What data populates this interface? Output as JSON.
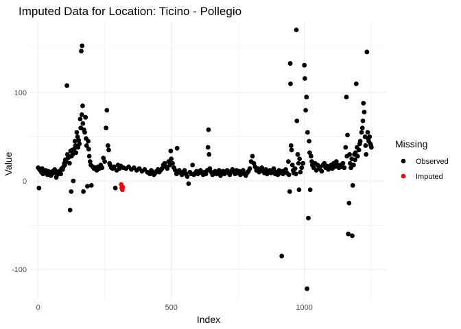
{
  "chart_data": {
    "type": "scatter",
    "title": "Imputed Data for Location: Ticino - Pollegio",
    "xlabel": "Index",
    "ylabel": "Value",
    "xlim": [
      -30,
      1305
    ],
    "ylim": [
      -135,
      180
    ],
    "x_ticks": [
      0,
      500,
      1000
    ],
    "x_tick_labels": [
      "0",
      "500",
      "1000"
    ],
    "y_ticks": [
      -100,
      0,
      100
    ],
    "y_tick_labels": [
      "-100",
      "0",
      "100"
    ],
    "grid": true,
    "legend_position": "right",
    "legend_title": "Missing",
    "colors": {
      "Observed": "#000000",
      "Imputed": "#ff0000"
    },
    "series": [
      {
        "name": "Observed",
        "points": [
          [
            0,
            15
          ],
          [
            3,
            -8
          ],
          [
            5,
            13
          ],
          [
            8,
            12
          ],
          [
            12,
            10
          ],
          [
            15,
            14
          ],
          [
            18,
            8
          ],
          [
            22,
            11
          ],
          [
            25,
            9
          ],
          [
            28,
            12
          ],
          [
            32,
            10
          ],
          [
            35,
            7
          ],
          [
            38,
            11
          ],
          [
            42,
            9
          ],
          [
            45,
            10
          ],
          [
            48,
            6
          ],
          [
            52,
            8
          ],
          [
            55,
            11
          ],
          [
            58,
            9
          ],
          [
            62,
            13
          ],
          [
            65,
            10
          ],
          [
            68,
            4
          ],
          [
            72,
            7
          ],
          [
            75,
            9
          ],
          [
            78,
            11
          ],
          [
            82,
            10
          ],
          [
            85,
            8
          ],
          [
            88,
            14
          ],
          [
            92,
            13
          ],
          [
            95,
            16
          ],
          [
            98,
            20
          ],
          [
            100,
            18
          ],
          [
            102,
            24
          ],
          [
            105,
            22
          ],
          [
            108,
            108
          ],
          [
            110,
            30
          ],
          [
            112,
            26
          ],
          [
            115,
            27
          ],
          [
            118,
            20
          ],
          [
            120,
            -33
          ],
          [
            122,
            34
          ],
          [
            124,
            -12
          ],
          [
            125,
            28
          ],
          [
            128,
            35
          ],
          [
            130,
            30
          ],
          [
            132,
            0
          ],
          [
            135,
            36
          ],
          [
            138,
            45
          ],
          [
            140,
            40
          ],
          [
            142,
            32
          ],
          [
            145,
            55
          ],
          [
            148,
            50
          ],
          [
            150,
            38
          ],
          [
            152,
            46
          ],
          [
            155,
            42
          ],
          [
            158,
            70
          ],
          [
            160,
            60
          ],
          [
            162,
            147
          ],
          [
            164,
            75
          ],
          [
            165,
            153
          ],
          [
            167,
            85
          ],
          [
            168,
            65
          ],
          [
            170,
            -12
          ],
          [
            172,
            58
          ],
          [
            175,
            55
          ],
          [
            178,
            72
          ],
          [
            180,
            48
          ],
          [
            182,
            40
          ],
          [
            185,
            -6
          ],
          [
            188,
            45
          ],
          [
            190,
            36
          ],
          [
            192,
            28
          ],
          [
            195,
            22
          ],
          [
            198,
            18
          ],
          [
            200,
            -5
          ],
          [
            205,
            16
          ],
          [
            210,
            14
          ],
          [
            215,
            15
          ],
          [
            220,
            12
          ],
          [
            225,
            16
          ],
          [
            230,
            14
          ],
          [
            235,
            18
          ],
          [
            240,
            15
          ],
          [
            245,
            26
          ],
          [
            250,
            22
          ],
          [
            255,
            60
          ],
          [
            258,
            80
          ],
          [
            262,
            40
          ],
          [
            265,
            35
          ],
          [
            268,
            20
          ],
          [
            270,
            18
          ],
          [
            275,
            15
          ],
          [
            280,
            14
          ],
          [
            285,
            16
          ],
          [
            290,
            -8
          ],
          [
            295,
            12
          ],
          [
            300,
            18
          ],
          [
            305,
            14
          ],
          [
            310,
            17
          ],
          [
            320,
            15
          ],
          [
            330,
            14
          ],
          [
            340,
            16
          ],
          [
            350,
            13
          ],
          [
            360,
            15
          ],
          [
            370,
            12
          ],
          [
            380,
            14
          ],
          [
            390,
            11
          ],
          [
            400,
            13
          ],
          [
            410,
            10
          ],
          [
            415,
            9
          ],
          [
            420,
            8
          ],
          [
            425,
            12
          ],
          [
            430,
            10
          ],
          [
            435,
            7
          ],
          [
            440,
            9
          ],
          [
            445,
            11
          ],
          [
            450,
            13
          ],
          [
            455,
            10
          ],
          [
            460,
            12
          ],
          [
            465,
            14
          ],
          [
            470,
            18
          ],
          [
            475,
            20
          ],
          [
            480,
            16
          ],
          [
            485,
            14
          ],
          [
            490,
            22
          ],
          [
            495,
            18
          ],
          [
            498,
            34
          ],
          [
            500,
            25
          ],
          [
            505,
            20
          ],
          [
            510,
            15
          ],
          [
            515,
            12
          ],
          [
            520,
            8
          ],
          [
            522,
            37
          ],
          [
            525,
            10
          ],
          [
            530,
            12
          ],
          [
            535,
            9
          ],
          [
            540,
            7
          ],
          [
            545,
            10
          ],
          [
            550,
            12
          ],
          [
            555,
            8
          ],
          [
            560,
            5
          ],
          [
            565,
            -3
          ],
          [
            570,
            10
          ],
          [
            575,
            8
          ],
          [
            580,
            18
          ],
          [
            585,
            7
          ],
          [
            590,
            9
          ],
          [
            595,
            11
          ],
          [
            600,
            8
          ],
          [
            605,
            10
          ],
          [
            610,
            12
          ],
          [
            615,
            9
          ],
          [
            620,
            7
          ],
          [
            625,
            10
          ],
          [
            630,
            8
          ],
          [
            635,
            12
          ],
          [
            638,
            38
          ],
          [
            640,
            58
          ],
          [
            642,
            30
          ],
          [
            645,
            14
          ],
          [
            650,
            10
          ],
          [
            655,
            7
          ],
          [
            660,
            9
          ],
          [
            665,
            11
          ],
          [
            670,
            8
          ],
          [
            675,
            10
          ],
          [
            680,
            12
          ],
          [
            685,
            6
          ],
          [
            690,
            9
          ],
          [
            695,
            11
          ],
          [
            700,
            8
          ],
          [
            705,
            10
          ],
          [
            710,
            12
          ],
          [
            715,
            9
          ],
          [
            720,
            7
          ],
          [
            725,
            11
          ],
          [
            730,
            13
          ],
          [
            735,
            10
          ],
          [
            740,
            8
          ],
          [
            745,
            12
          ],
          [
            750,
            9
          ],
          [
            755,
            11
          ],
          [
            760,
            7
          ],
          [
            765,
            10
          ],
          [
            770,
            12
          ],
          [
            775,
            8
          ],
          [
            780,
            6
          ],
          [
            785,
            9
          ],
          [
            790,
            11
          ],
          [
            795,
            14
          ],
          [
            800,
            22
          ],
          [
            805,
            28
          ],
          [
            810,
            20
          ],
          [
            815,
            16
          ],
          [
            820,
            12
          ],
          [
            825,
            14
          ],
          [
            830,
            10
          ],
          [
            835,
            12
          ],
          [
            840,
            15
          ],
          [
            845,
            11
          ],
          [
            850,
            9
          ],
          [
            855,
            13
          ],
          [
            860,
            8
          ],
          [
            865,
            10
          ],
          [
            870,
            12
          ],
          [
            875,
            9
          ],
          [
            880,
            11
          ],
          [
            885,
            14
          ],
          [
            890,
            8
          ],
          [
            895,
            10
          ],
          [
            900,
            7
          ],
          [
            905,
            12
          ],
          [
            910,
            9
          ],
          [
            915,
            -85
          ],
          [
            918,
            11
          ],
          [
            920,
            8
          ],
          [
            925,
            10
          ],
          [
            930,
            13
          ],
          [
            935,
            9
          ],
          [
            940,
            22
          ],
          [
            942,
            7
          ],
          [
            945,
            -12
          ],
          [
            947,
            133
          ],
          [
            948,
            110
          ],
          [
            950,
            40
          ],
          [
            952,
            35
          ],
          [
            955,
            18
          ],
          [
            958,
            12
          ],
          [
            960,
            9
          ],
          [
            965,
            14
          ],
          [
            968,
            8
          ],
          [
            970,
            171
          ],
          [
            972,
            68
          ],
          [
            975,
            30
          ],
          [
            978,
            20
          ],
          [
            980,
            -10
          ],
          [
            982,
            25
          ],
          [
            985,
            10
          ],
          [
            990,
            15
          ],
          [
            995,
            20
          ],
          [
            1000,
            131
          ],
          [
            1002,
            116
          ],
          [
            1005,
            80
          ],
          [
            1008,
            95
          ],
          [
            1010,
            -122
          ],
          [
            1012,
            55
          ],
          [
            1015,
            -42
          ],
          [
            1018,
            45
          ],
          [
            1020,
            32
          ],
          [
            1022,
            -10
          ],
          [
            1025,
            28
          ],
          [
            1028,
            22
          ],
          [
            1030,
            18
          ],
          [
            1035,
            15
          ],
          [
            1040,
            20
          ],
          [
            1045,
            12
          ],
          [
            1050,
            18
          ],
          [
            1055,
            14
          ],
          [
            1060,
            16
          ],
          [
            1065,
            11
          ],
          [
            1070,
            18
          ],
          [
            1075,
            20
          ],
          [
            1080,
            15
          ],
          [
            1085,
            17
          ],
          [
            1090,
            13
          ],
          [
            1095,
            16
          ],
          [
            1100,
            18
          ],
          [
            1105,
            14
          ],
          [
            1110,
            20
          ],
          [
            1115,
            16
          ],
          [
            1120,
            22
          ],
          [
            1125,
            18
          ],
          [
            1130,
            15
          ],
          [
            1135,
            18
          ],
          [
            1140,
            16
          ],
          [
            1145,
            20
          ],
          [
            1150,
            15
          ],
          [
            1155,
            38
          ],
          [
            1158,
            95
          ],
          [
            1160,
            28
          ],
          [
            1162,
            52
          ],
          [
            1165,
            -60
          ],
          [
            1168,
            -25
          ],
          [
            1170,
            30
          ],
          [
            1172,
            20
          ],
          [
            1175,
            15
          ],
          [
            1178,
            25
          ],
          [
            1180,
            -62
          ],
          [
            1182,
            -5
          ],
          [
            1185,
            18
          ],
          [
            1188,
            30
          ],
          [
            1190,
            24
          ],
          [
            1192,
            32
          ],
          [
            1195,
            110
          ],
          [
            1198,
            38
          ],
          [
            1200,
            28
          ],
          [
            1205,
            35
          ],
          [
            1208,
            42
          ],
          [
            1210,
            45
          ],
          [
            1215,
            55
          ],
          [
            1218,
            60
          ],
          [
            1220,
            68
          ],
          [
            1222,
            88
          ],
          [
            1225,
            78
          ],
          [
            1228,
            50
          ],
          [
            1230,
            40
          ],
          [
            1232,
            30
          ],
          [
            1235,
            146
          ],
          [
            1238,
            55
          ],
          [
            1240,
            48
          ],
          [
            1242,
            45
          ],
          [
            1245,
            50
          ],
          [
            1248,
            42
          ],
          [
            1250,
            40
          ],
          [
            1252,
            38
          ]
        ]
      },
      {
        "name": "Imputed",
        "points": [
          [
            312,
            -4
          ],
          [
            314,
            -8
          ],
          [
            316,
            -10
          ],
          [
            318,
            -7
          ]
        ]
      }
    ]
  }
}
